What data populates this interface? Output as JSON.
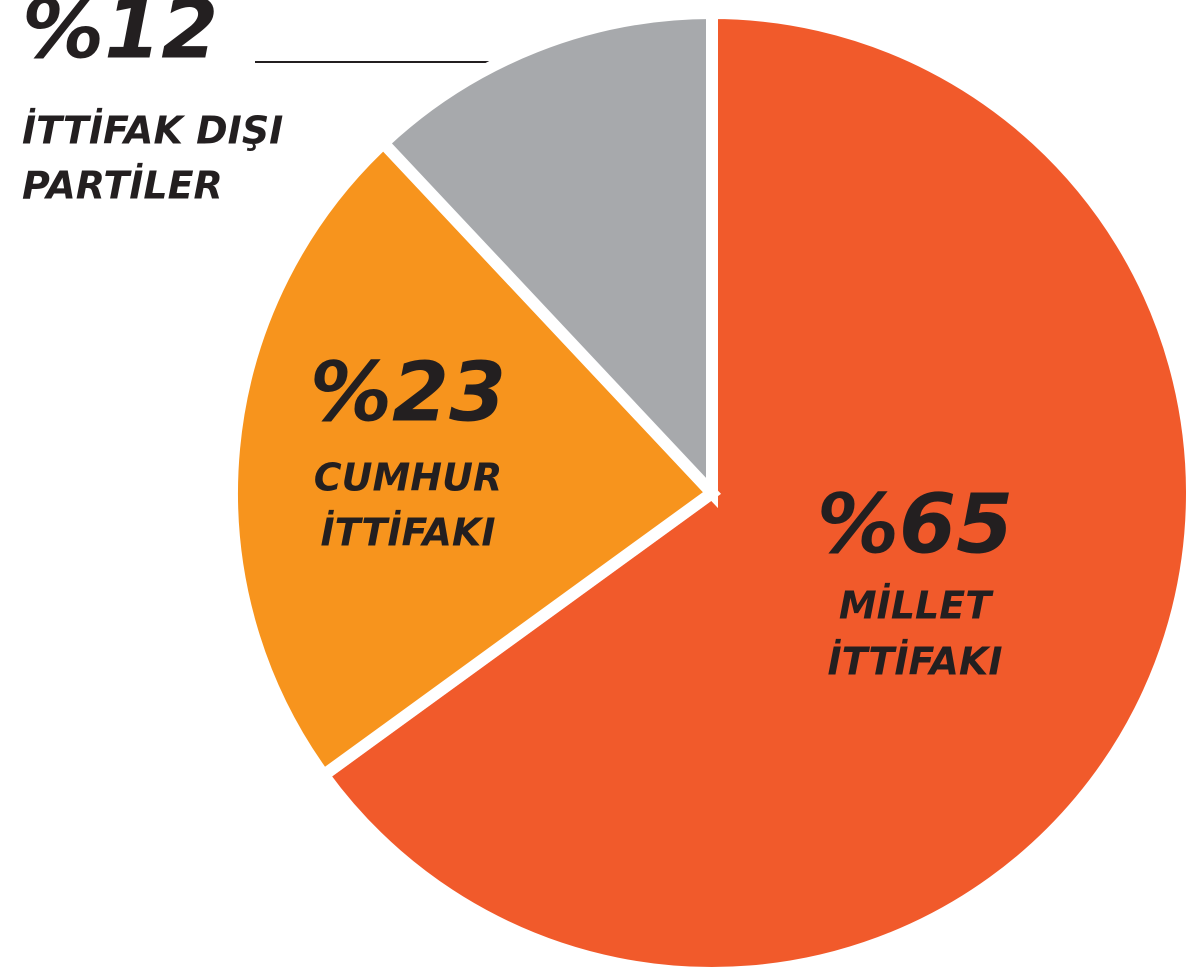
{
  "chart_data": {
    "type": "pie",
    "categories": [
      [
        "MİLLET",
        "İTTİFAKI"
      ],
      [
        "CUMHUR",
        "İTTİFAKI"
      ],
      [
        "İTTİFAK DIŞI",
        "PARTİLER"
      ]
    ],
    "values": [
      65,
      23,
      12
    ],
    "value_labels": [
      "%65",
      "%23",
      "%12"
    ],
    "colors": [
      "#f15a2b",
      "#f7941d",
      "#a7a9ac"
    ]
  }
}
